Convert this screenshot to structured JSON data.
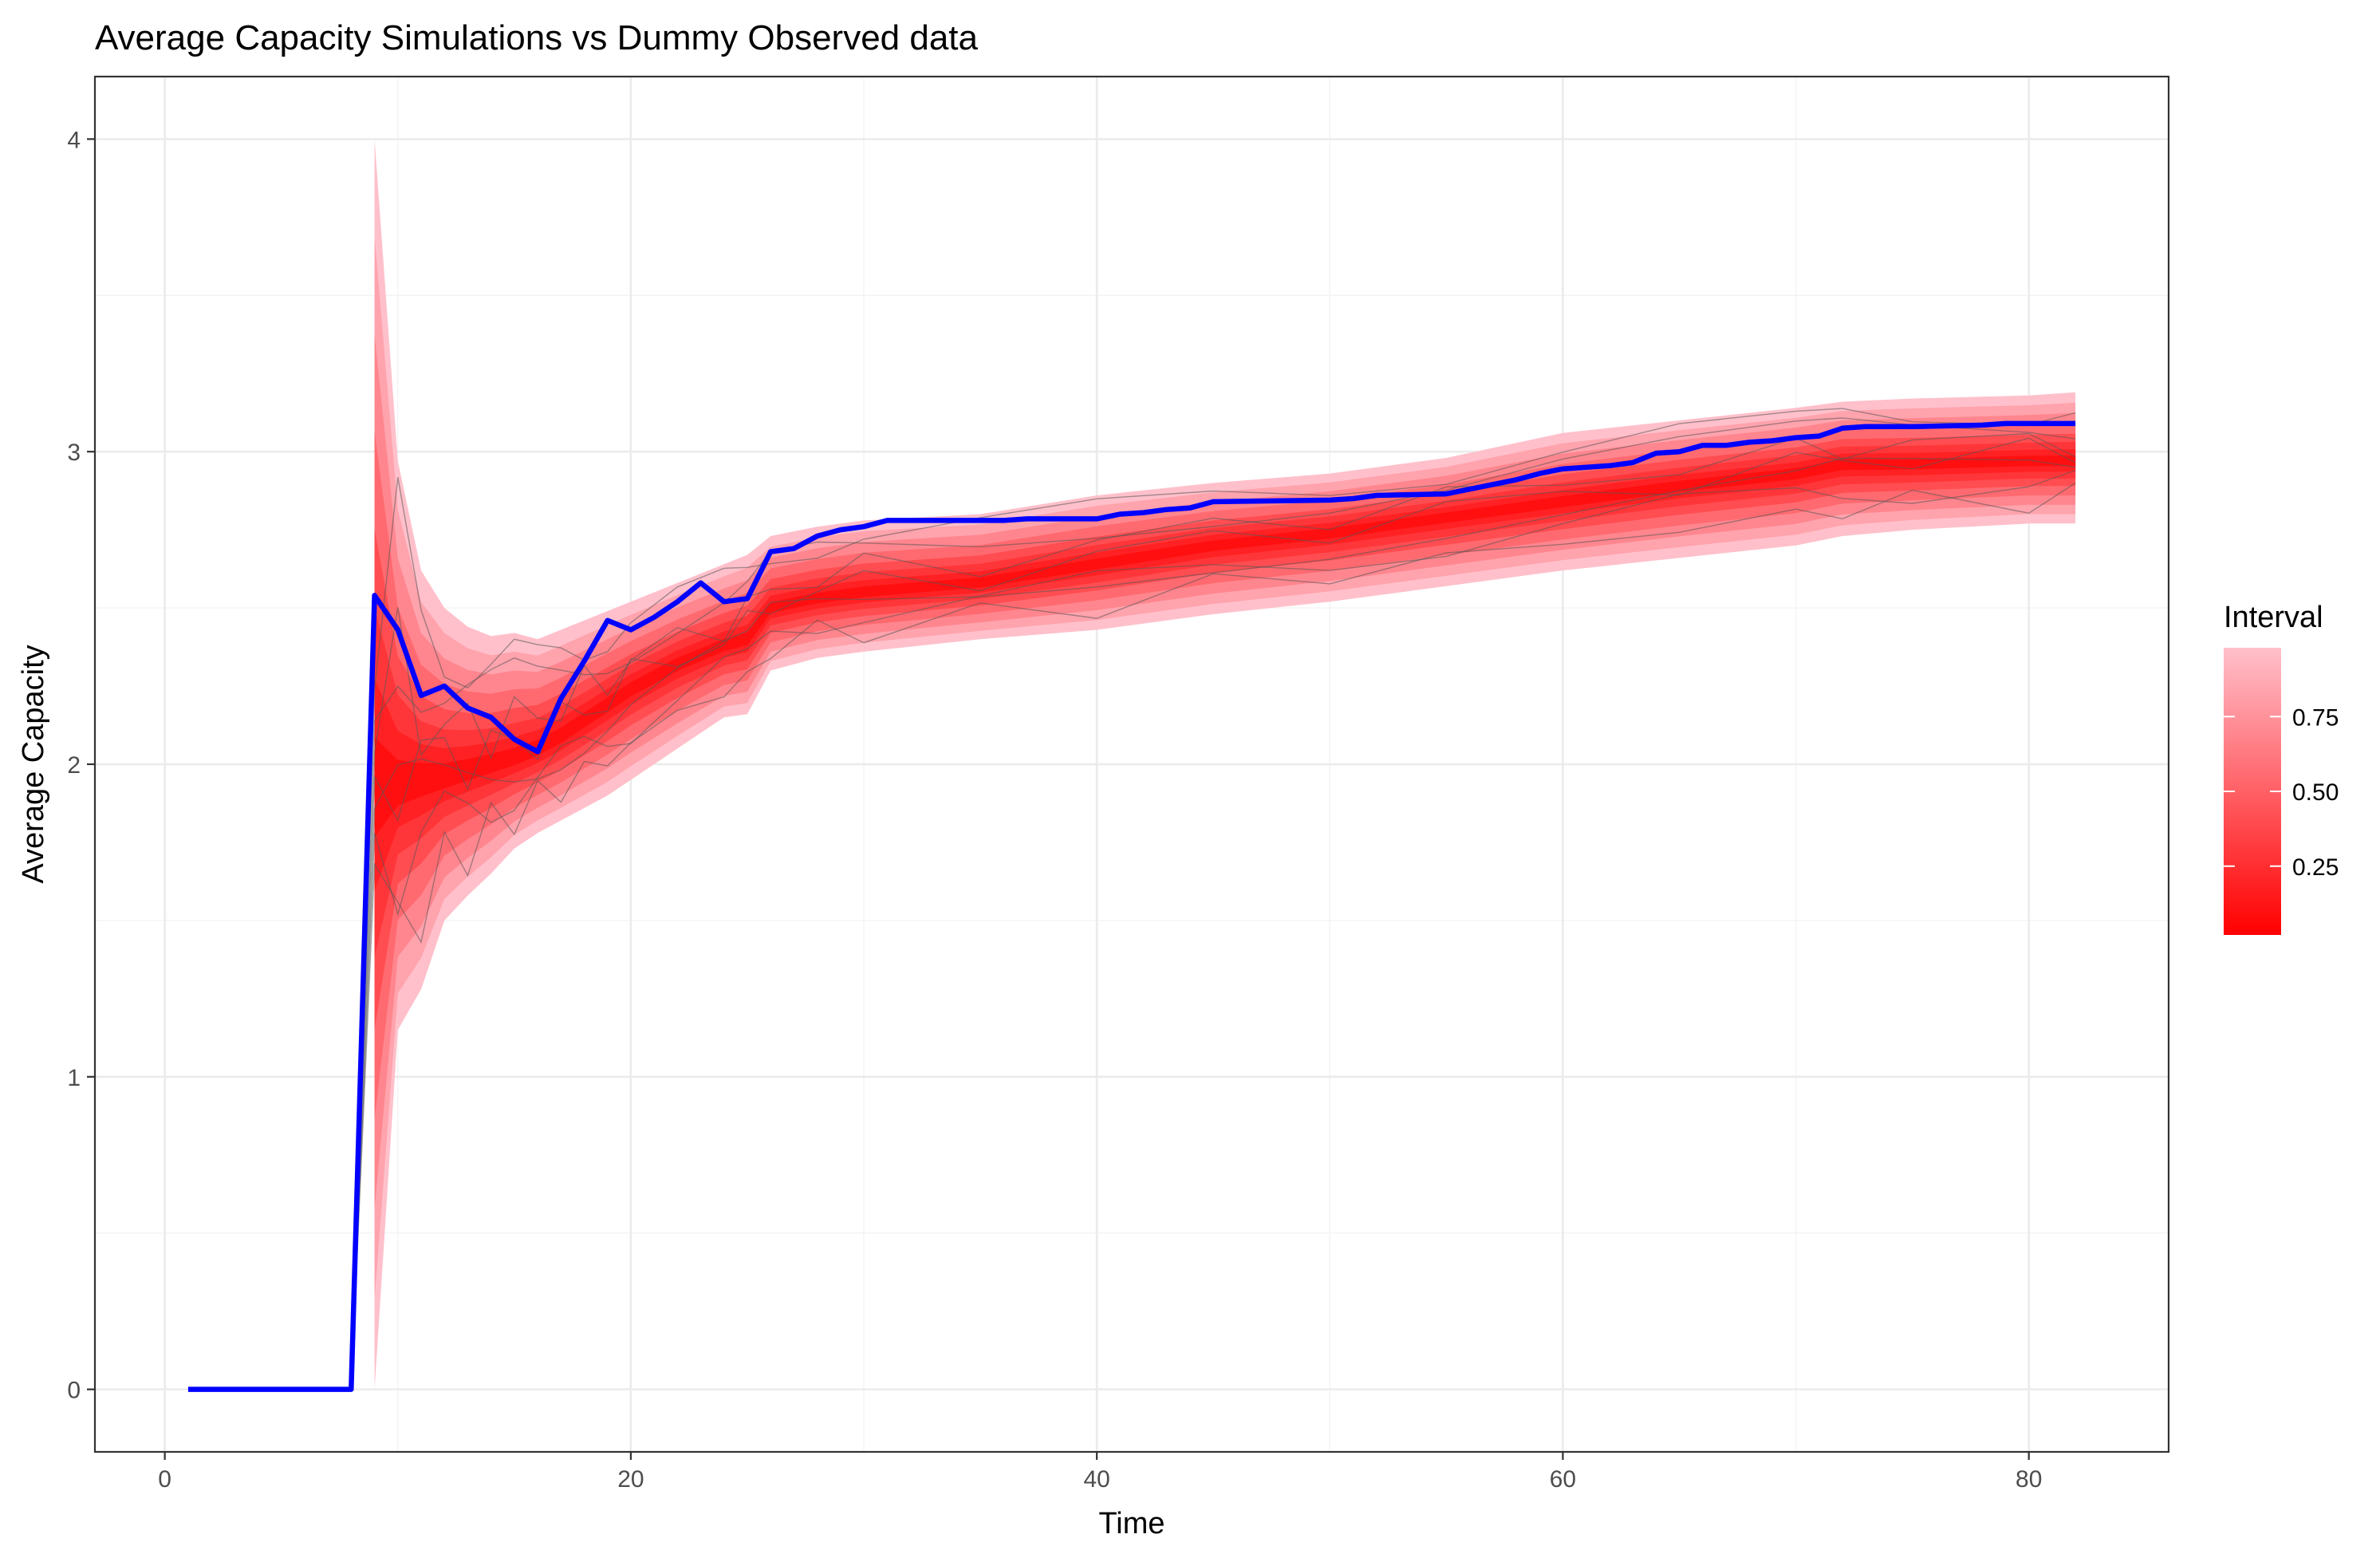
{
  "chart_data": {
    "type": "line",
    "title": "Average Capacity Simulations vs Dummy Observed data",
    "xlabel": "Time",
    "ylabel": "Average Capacity",
    "xlim": [
      -3,
      86
    ],
    "ylim": [
      -0.2,
      4.2
    ],
    "x_ticks": [
      0,
      20,
      40,
      60,
      80
    ],
    "y_ticks": [
      0,
      1,
      2,
      3,
      4
    ],
    "grid": true,
    "legend": {
      "title": "Interval",
      "position": "right",
      "range": [
        0.02,
        0.98
      ],
      "ticks": [
        0.25,
        0.5,
        0.75
      ],
      "tick_labels": [
        "0.25",
        "0.50",
        "0.75"
      ],
      "colors": [
        "#ff0000",
        "#ffc0cb"
      ]
    },
    "colors": {
      "observed": "#0000ff",
      "interval_low": "#ff0000",
      "interval_high": "#ffc0cb",
      "simulations": "#555555"
    },
    "bands": {
      "x": [
        9,
        10,
        11,
        12,
        13,
        14,
        15,
        16,
        17,
        18,
        19,
        20,
        22,
        24,
        25,
        26,
        28,
        30,
        35,
        40,
        45,
        50,
        55,
        60,
        65,
        70,
        72,
        75,
        80,
        82
      ],
      "median": [
        1.92,
        1.93,
        1.95,
        1.96,
        1.98,
        2.0,
        2.02,
        2.05,
        2.09,
        2.14,
        2.19,
        2.24,
        2.32,
        2.38,
        2.4,
        2.5,
        2.53,
        2.55,
        2.58,
        2.64,
        2.7,
        2.74,
        2.79,
        2.84,
        2.89,
        2.93,
        2.96,
        2.96,
        2.97,
        2.97
      ],
      "lower_95": [
        0.0,
        1.15,
        1.28,
        1.5,
        1.58,
        1.65,
        1.73,
        1.78,
        1.82,
        1.86,
        1.9,
        1.95,
        2.05,
        2.15,
        2.16,
        2.3,
        2.34,
        2.36,
        2.4,
        2.43,
        2.48,
        2.52,
        2.57,
        2.62,
        2.66,
        2.7,
        2.73,
        2.75,
        2.77,
        2.77
      ],
      "upper_95": [
        4.0,
        2.97,
        2.62,
        2.5,
        2.44,
        2.41,
        2.42,
        2.4,
        2.43,
        2.46,
        2.49,
        2.52,
        2.58,
        2.64,
        2.67,
        2.73,
        2.76,
        2.78,
        2.8,
        2.86,
        2.9,
        2.93,
        2.98,
        3.06,
        3.1,
        3.14,
        3.16,
        3.17,
        3.18,
        3.19
      ]
    },
    "series": [
      {
        "name": "Observed",
        "x": [
          1,
          2,
          3,
          4,
          5,
          6,
          7,
          8,
          9,
          10,
          11,
          12,
          13,
          14,
          15,
          16,
          17,
          18,
          19,
          20,
          21,
          22,
          23,
          24,
          25,
          26,
          27,
          28,
          29,
          30,
          31,
          35,
          36,
          37,
          40,
          41,
          42,
          43,
          44,
          45,
          50,
          51,
          52,
          55,
          56,
          57,
          58,
          59,
          60,
          61,
          62,
          63,
          64,
          65,
          66,
          67,
          68,
          69,
          70,
          71,
          72,
          73,
          75,
          78,
          79,
          82
        ],
        "y": [
          0,
          0,
          0,
          0,
          0,
          0,
          0,
          0,
          2.54,
          2.43,
          2.22,
          2.25,
          2.18,
          2.15,
          2.08,
          2.04,
          2.21,
          2.33,
          2.46,
          2.43,
          2.47,
          2.52,
          2.58,
          2.52,
          2.53,
          2.68,
          2.69,
          2.73,
          2.75,
          2.76,
          2.78,
          2.78,
          2.78,
          2.785,
          2.785,
          2.8,
          2.805,
          2.815,
          2.82,
          2.84,
          2.845,
          2.85,
          2.86,
          2.865,
          2.88,
          2.895,
          2.91,
          2.93,
          2.945,
          2.95,
          2.955,
          2.965,
          2.995,
          3.0,
          3.02,
          3.02,
          3.03,
          3.035,
          3.045,
          3.05,
          3.075,
          3.08,
          3.08,
          3.085,
          3.09,
          3.09
        ]
      }
    ]
  }
}
